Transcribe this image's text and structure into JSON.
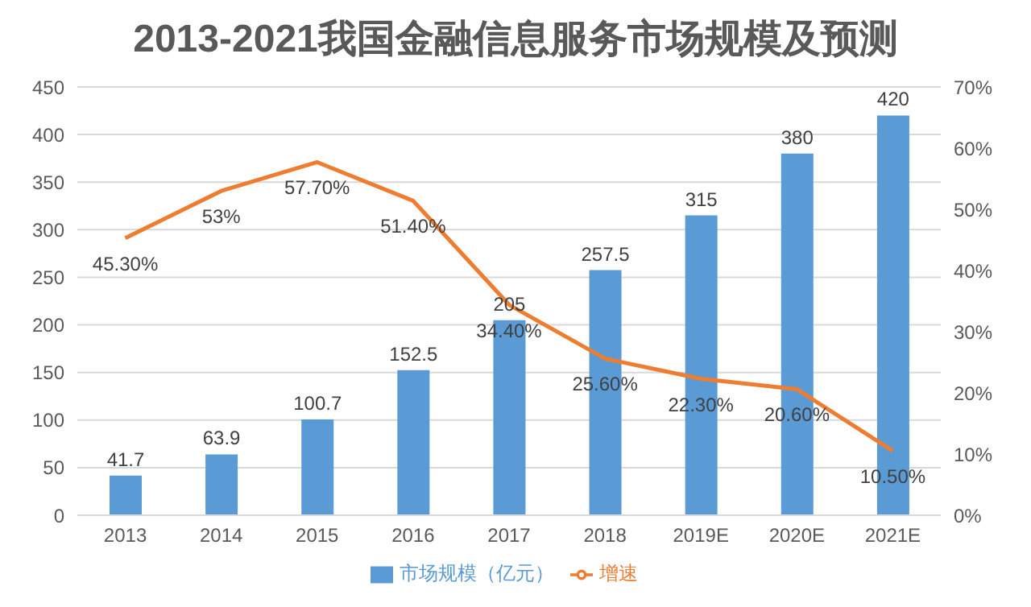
{
  "chart_data": {
    "type": "bar",
    "title": "2013-2021我国金融信息服务市场规模及预测",
    "categories": [
      "2013",
      "2014",
      "2015",
      "2016",
      "2017",
      "2018",
      "2019E",
      "2020E",
      "2021E"
    ],
    "series": [
      {
        "name": "市场规模（亿元）",
        "color": "#5b9bd5",
        "values": [
          41.7,
          63.9,
          100.7,
          152.5,
          205,
          257.5,
          315,
          380,
          420
        ],
        "value_labels": [
          "41.7",
          "63.9",
          "100.7",
          "152.5",
          "205",
          "257.5",
          "315",
          "380",
          "420"
        ]
      },
      {
        "name": "增速",
        "type": "line",
        "axis": "y2",
        "color": "#ed7d31",
        "values": [
          45.3,
          53,
          57.7,
          51.4,
          34.4,
          25.6,
          22.3,
          20.6,
          10.5
        ],
        "value_labels": [
          "45.30%",
          "53%",
          "57.70%",
          "51.40%",
          "34.40%",
          "25.60%",
          "22.30%",
          "20.60%",
          "10.50%"
        ]
      }
    ],
    "ylim": [
      0,
      450
    ],
    "yticks": [
      0,
      50,
      100,
      150,
      200,
      250,
      300,
      350,
      400,
      450
    ],
    "y2lim": [
      0,
      70
    ],
    "y2ticks": [
      {
        "value": 0,
        "label": "0%"
      },
      {
        "value": 10,
        "label": "10%"
      },
      {
        "value": 20,
        "label": "20%"
      },
      {
        "value": 30,
        "label": "30%"
      },
      {
        "value": 40,
        "label": "40%"
      },
      {
        "value": 50,
        "label": "50%"
      },
      {
        "value": 60,
        "label": "60%"
      },
      {
        "value": 70,
        "label": "70%"
      }
    ],
    "grid": "y",
    "legend": "bottom",
    "marker": "none",
    "line_style": "solid"
  }
}
